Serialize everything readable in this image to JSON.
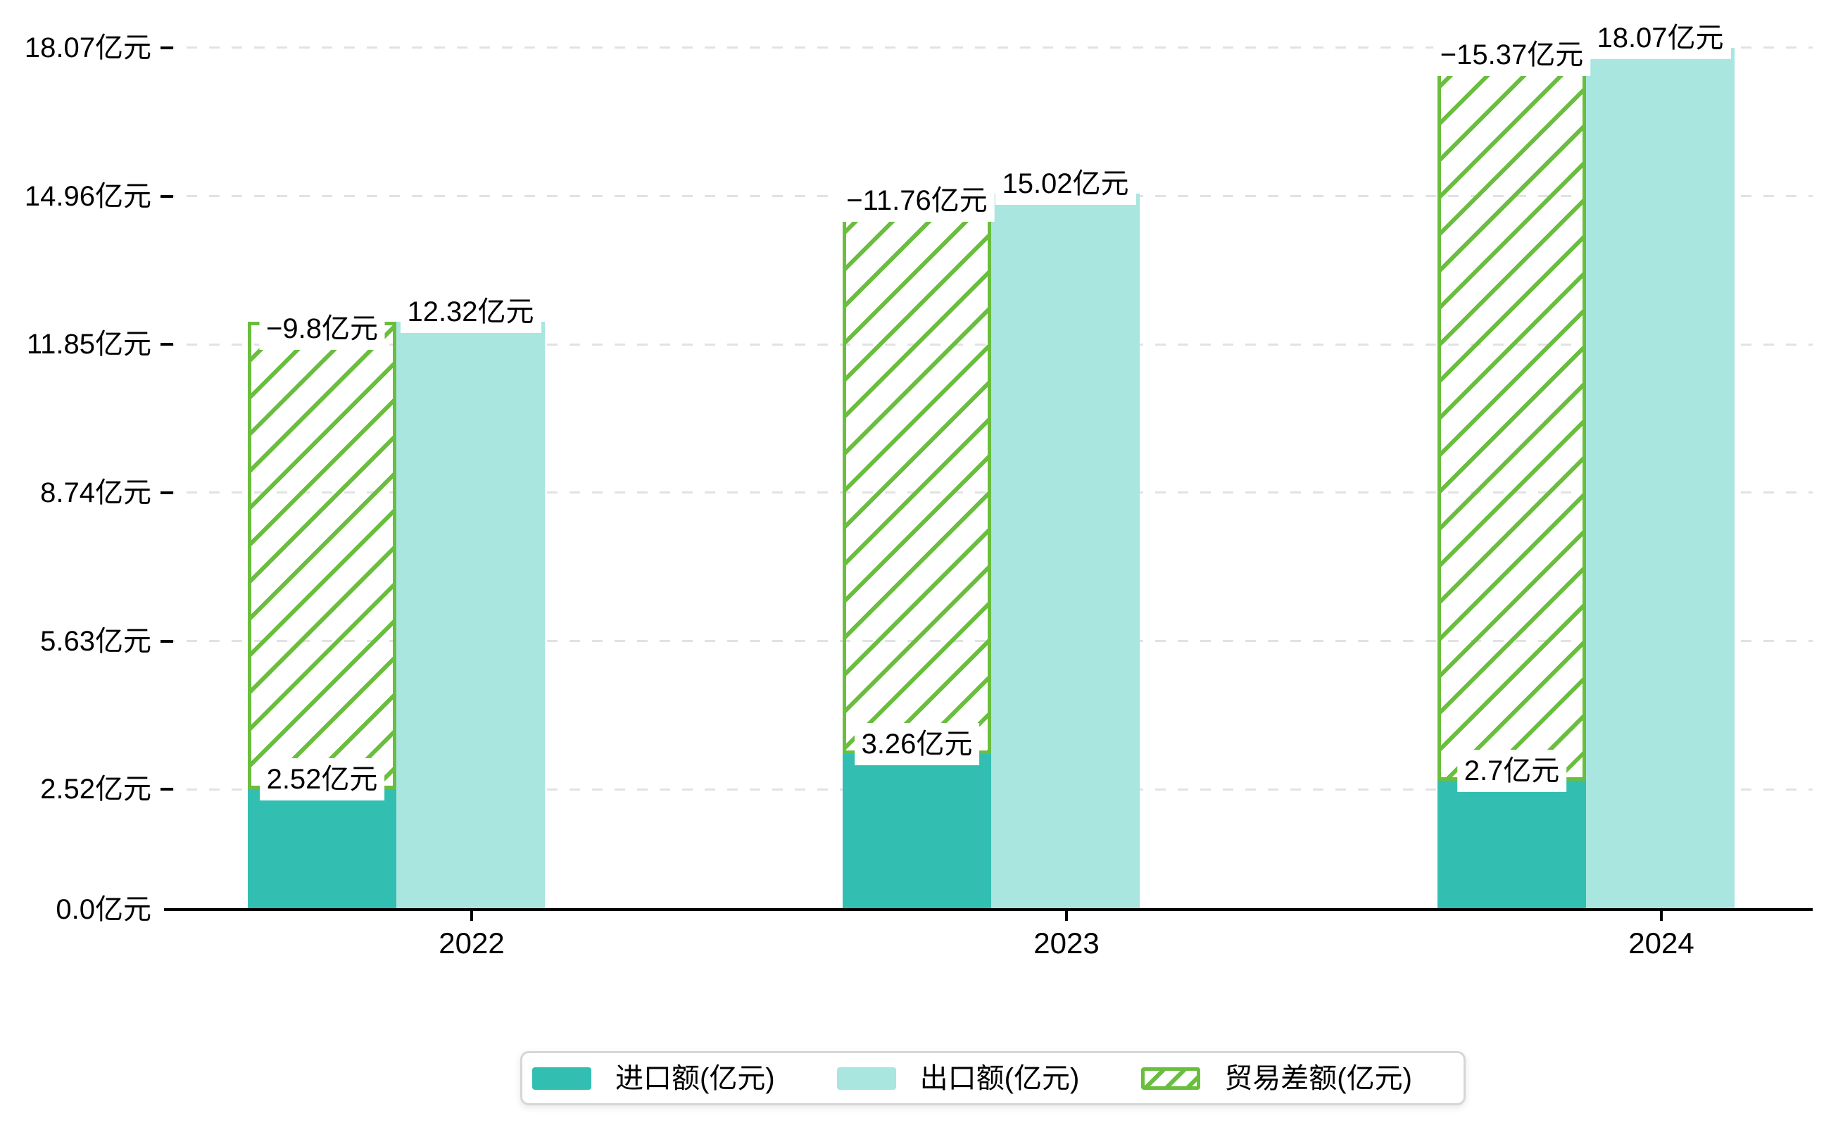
{
  "chart_data": {
    "type": "bar",
    "title": "",
    "categories": [
      "2022",
      "2023",
      "2024"
    ],
    "series": [
      {
        "name": "进口额(亿元)",
        "role": "import",
        "color": "#32BFB2",
        "stack": "total",
        "values": [
          2.52,
          3.26,
          2.7
        ],
        "labels": [
          "2.52亿元",
          "3.26亿元",
          "2.7亿元"
        ]
      },
      {
        "name": "出口额(亿元)",
        "role": "export",
        "color": "#A8E6DF",
        "stack": null,
        "values": [
          12.32,
          15.02,
          18.07
        ],
        "labels": [
          "12.32亿元",
          "15.02亿元",
          "18.07亿元"
        ]
      },
      {
        "name": "贸易差额(亿元)",
        "role": "trade-balance",
        "color": "#6ABE3E",
        "style": "hatched",
        "stack": "total",
        "values": [
          -9.8,
          -11.76,
          -15.37
        ],
        "labels": [
          "−9.8亿元",
          "−11.76亿元",
          "−15.37亿元"
        ]
      }
    ],
    "y_axis": {
      "unit": "亿元",
      "range": [
        0,
        18.07
      ],
      "grid": "dashed",
      "ticks": [
        0.0,
        2.52,
        5.63,
        8.74,
        11.85,
        14.96,
        18.07
      ],
      "tick_labels": [
        "0.0亿元",
        "2.52亿元",
        "5.63亿元",
        "8.74亿元",
        "11.85亿元",
        "14.96亿元",
        "18.07亿元"
      ]
    },
    "x_axis": {
      "labels": [
        "2022",
        "2023",
        "2024"
      ]
    },
    "legend": {
      "position": "bottom",
      "items": [
        {
          "label": "进口额(亿元)",
          "swatch": "solid-teal"
        },
        {
          "label": "出口额(亿元)",
          "swatch": "solid-light-cyan"
        },
        {
          "label": "贸易差额(亿元)",
          "swatch": "white-green-hatched"
        }
      ]
    },
    "colors": {
      "import": "#32BFB2",
      "export": "#A8E6DF",
      "balance": "#6ABE3E",
      "grid": "#e2e2e2",
      "axis": "#000000",
      "label_bg": "#ffffff",
      "label_text": "#000000"
    }
  }
}
